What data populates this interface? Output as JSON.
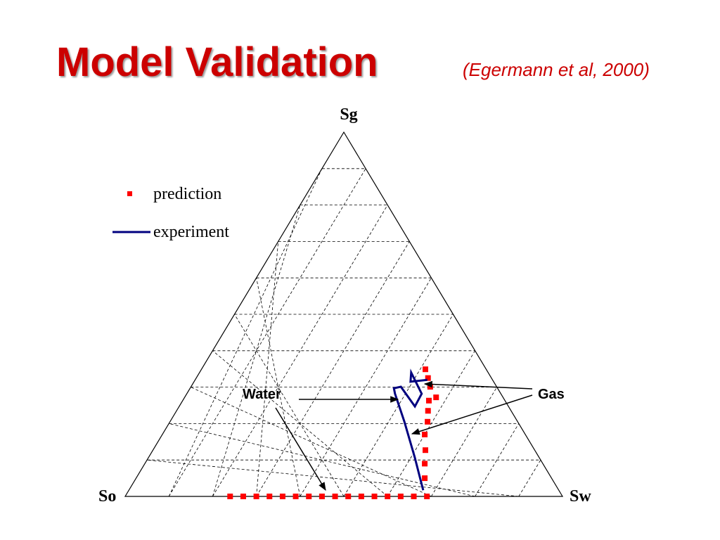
{
  "chart_data": {
    "type": "ternary",
    "title": "Model Validation",
    "subtitle": "(Egermann et al, 2000)",
    "apex_labels": {
      "top": "Sg",
      "left": "So",
      "right": "Sw"
    },
    "ticks": [
      0.1,
      0.2,
      0.3,
      0.4,
      0.5,
      0.6,
      0.7,
      0.8,
      0.9
    ],
    "grid": true,
    "series": [
      {
        "name": "prediction",
        "color": "#ff0000",
        "marker": "square",
        "sw": [
          0.24,
          0.27,
          0.3,
          0.33,
          0.36,
          0.39,
          0.42,
          0.45,
          0.48,
          0.51,
          0.54,
          0.57,
          0.6,
          0.63,
          0.66,
          0.69,
          0.66,
          0.64,
          0.623,
          0.6,
          0.589,
          0.575,
          0.563,
          0.575,
          0.547,
          0.53,
          0.512
        ],
        "sg": [
          0,
          0,
          0,
          0,
          0,
          0,
          0,
          0,
          0,
          0,
          0,
          0,
          0,
          0,
          0,
          0,
          0.05,
          0.09,
          0.127,
          0.17,
          0.205,
          0.235,
          0.263,
          0.272,
          0.301,
          0.325,
          0.349
        ]
      },
      {
        "name": "experiment",
        "color": "#00007f",
        "marker": "line",
        "sw": [
          0.673,
          0.608,
          0.536,
          0.476,
          0.466,
          0.48,
          0.539,
          0.537,
          0.484,
          0.495,
          0.531
        ],
        "sg": [
          0.017,
          0.108,
          0.205,
          0.282,
          0.297,
          0.301,
          0.247,
          0.282,
          0.34,
          0.315,
          0.32
        ]
      }
    ],
    "annotations": [
      {
        "text": "Water"
      },
      {
        "text": "Gas"
      }
    ]
  }
}
